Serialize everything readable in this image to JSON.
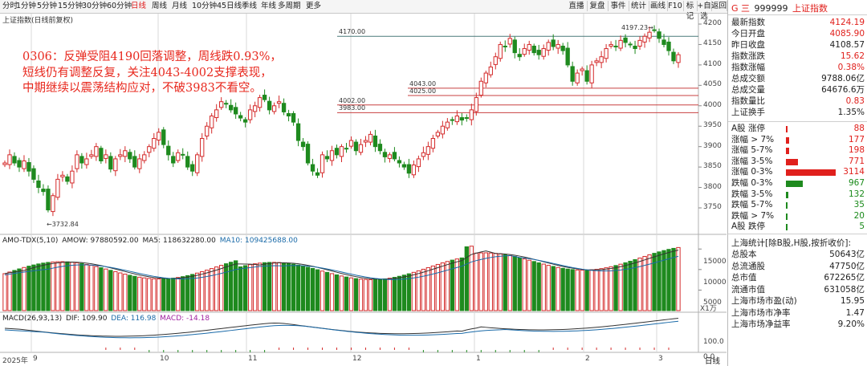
{
  "toolbar": {
    "periods": [
      "分时",
      "1分钟",
      "5分钟",
      "15分钟",
      "30分钟",
      "60分钟",
      "日线",
      "周线",
      "月线",
      "10分钟",
      "45日线",
      "季线",
      "年线",
      "多周期",
      "更多"
    ],
    "active_period": "日线",
    "right_buttons": [
      "直播",
      "复盘",
      "事件",
      "统计",
      "画线",
      "F10",
      "标记",
      "+自选",
      "返回"
    ]
  },
  "chart": {
    "title": "上证指数(日线前复权)",
    "y_ticks": [
      "4200",
      "4150",
      "4100",
      "4050",
      "4000",
      "3950",
      "3900",
      "3850",
      "3800",
      "3750"
    ],
    "x_ticks": [
      "2025年",
      "9",
      "10",
      "11",
      "12",
      "1",
      "2",
      "3"
    ],
    "low_label": "3732.84",
    "high_label": "4197.23",
    "level_lines": [
      {
        "label": "4170.00",
        "value": 4170,
        "color": "#4a7a7a"
      },
      {
        "label": "4043.00",
        "value": 4043,
        "color": "#c84040"
      },
      {
        "label": "4025.00",
        "value": 4025,
        "color": "#c84040"
      },
      {
        "label": "4002.00",
        "value": 4002,
        "color": "#c84040"
      },
      {
        "label": "3983.00",
        "value": 3983,
        "color": "#c84040"
      }
    ],
    "annotation_lines": [
      "0306：反弹受阻4190回落调整，周线跌0.93%，",
      "短线仍有调整反复，关注4043-4002支撑表现，",
      "中期继续以震荡结构应对，不破3983不看空。"
    ],
    "period_label": "日线"
  },
  "volume": {
    "legend_name": "AMO-TDX(5,10)",
    "amow": "AMOW: 97880592.00",
    "ma5": "MA5: 118632280.00",
    "ma10": "MA10: 109425688.00",
    "y_ticks": [
      "15000",
      "10000",
      "5000"
    ],
    "unit": "X1万"
  },
  "macd": {
    "legend_name": "MACD(26,93,13)",
    "dif": "DIF: 109.90",
    "dea": "DEA: 116.98",
    "macd": "MACD: -14.18",
    "y_ticks": [
      "100.0",
      "0.0"
    ]
  },
  "panel": {
    "code_prefix": "G 三",
    "code": "999999",
    "name": "上证指数",
    "quote_rows": [
      {
        "label": "最新指数",
        "value": "4124.19",
        "color": "red"
      },
      {
        "label": "今日开盘",
        "value": "4085.90",
        "color": "red"
      },
      {
        "label": "昨日收盘",
        "value": "4108.57",
        "color": "dark"
      },
      {
        "label": "指数涨跌",
        "value": "15.62",
        "color": "red"
      },
      {
        "label": "指数涨幅",
        "value": "0.38%",
        "color": "red"
      },
      {
        "label": "总成交额",
        "value": "9788.06亿",
        "color": "dark"
      },
      {
        "label": "总成交量",
        "value": "64676.6万",
        "color": "dark"
      },
      {
        "label": "指数量比",
        "value": "0.83",
        "color": "red"
      },
      {
        "label": "上证换手",
        "value": "1.35%",
        "color": "dark"
      }
    ],
    "up_rows": [
      {
        "label": "A股 涨停",
        "value": "88"
      },
      {
        "label": "涨幅 > 7%",
        "value": "177"
      },
      {
        "label": "涨幅 5-7%",
        "value": "198"
      },
      {
        "label": "涨幅 3-5%",
        "value": "771"
      },
      {
        "label": "涨幅 0-3%",
        "value": "3114"
      }
    ],
    "down_rows": [
      {
        "label": "跌幅 0-3%",
        "value": "967"
      },
      {
        "label": "跌幅 3-5%",
        "value": "132"
      },
      {
        "label": "跌幅 5-7%",
        "value": "35"
      },
      {
        "label": "跌幅 > 7%",
        "value": "20"
      },
      {
        "label": "A股 跌停",
        "value": "5"
      }
    ],
    "stats_title": "上海统计[除B股,H股,按折收价]:",
    "stats_rows": [
      {
        "label": "总股本",
        "value": "50643亿"
      },
      {
        "label": "总流通股",
        "value": "47750亿"
      },
      {
        "label": "总市值",
        "value": "672265亿"
      },
      {
        "label": "流通市值",
        "value": "631058亿"
      },
      {
        "label": "上海市场市盈(动)",
        "value": "15.95"
      },
      {
        "label": "上海市场市净率",
        "value": "1.47"
      },
      {
        "label": "上海市场净益率",
        "value": "9.20%"
      }
    ],
    "colors": {
      "red": "#e0201c",
      "green": "#1a8a1a",
      "dark": "#222222"
    }
  }
}
